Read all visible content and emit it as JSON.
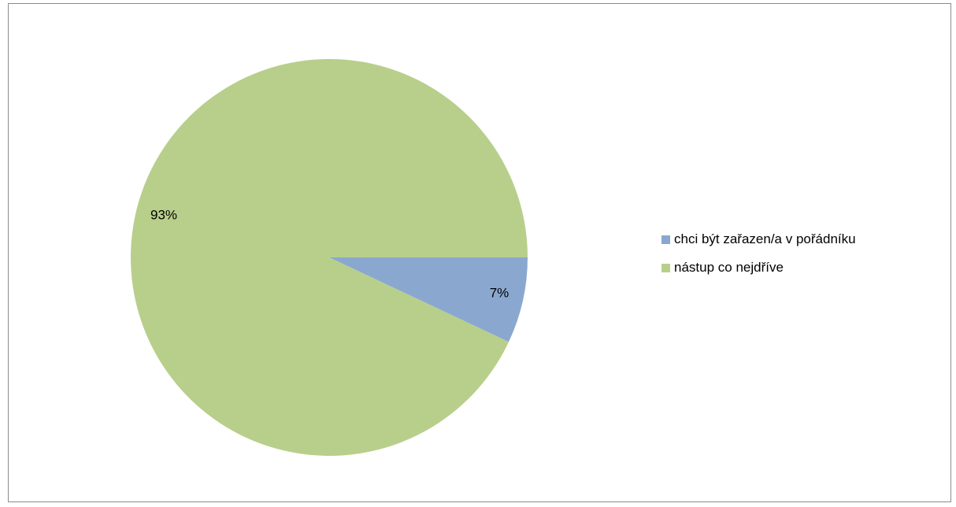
{
  "chart_data": {
    "type": "pie",
    "title": "",
    "slices": [
      {
        "label": "chci být zařazen/a v pořádníku",
        "value": 7,
        "display": "7%",
        "color": "#8aa8cf"
      },
      {
        "label": "nástup co nejdříve",
        "value": 93,
        "display": "93%",
        "color": "#b8cf8b"
      }
    ],
    "legend_position": "right"
  }
}
